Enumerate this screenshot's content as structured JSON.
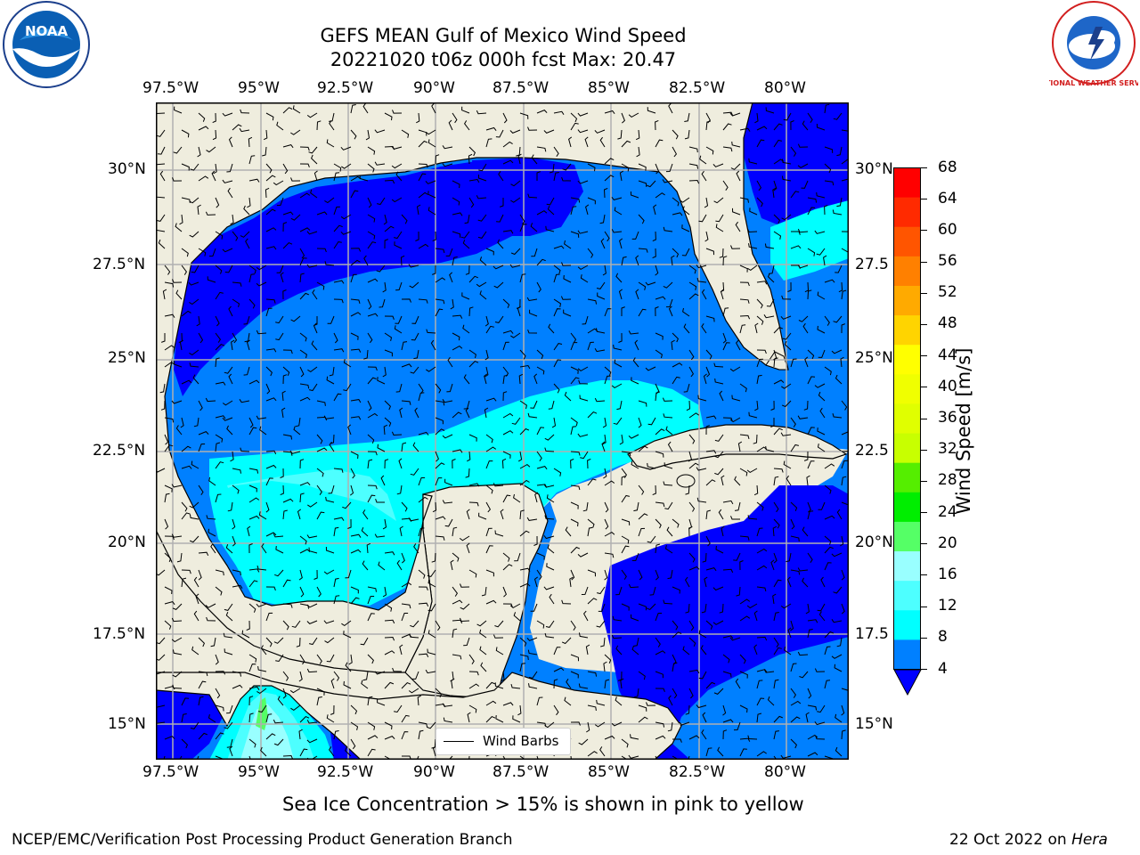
{
  "title": {
    "line1": "GEFS MEAN Gulf of Mexico Wind Speed",
    "line2": "20221020 t06z 000h fcst   Max: 20.47"
  },
  "logos": {
    "left": {
      "icon": "noaa-logo-icon",
      "text": "NOAA"
    },
    "right": {
      "icon": "national-weather-service-logo-icon",
      "text": "NATIONAL WEATHER SERVICE"
    }
  },
  "map": {
    "lon_ticks": [
      "97.5°W",
      "95°W",
      "92.5°W",
      "90°W",
      "87.5°W",
      "85°W",
      "82.5°W",
      "80°W"
    ],
    "lat_ticks_left": [
      "30°N",
      "27.5°N",
      "25°N",
      "22.5°N",
      "20°N",
      "17.5°N",
      "15°N"
    ],
    "lat_ticks_right": [
      "30°N",
      "27.5",
      "25°N",
      "22.5",
      "20°N",
      "17.5",
      "15°N"
    ],
    "legend_label": "Wind Barbs",
    "colors": {
      "land": "#efedde",
      "ws_4_8": "#0080ff",
      "ws_under4": "#0000ff",
      "ws_8_12": "#00ffff",
      "ws_12_16": "#4dffff",
      "ws_16_20": "#99ffff",
      "ws_20_24": "#55ff66"
    }
  },
  "colorbar": {
    "label": "Wind Speed [m/s]",
    "ticks": [
      "68",
      "64",
      "60",
      "56",
      "52",
      "48",
      "44",
      "40",
      "36",
      "32",
      "28",
      "24",
      "20",
      "16",
      "12",
      "8",
      "4"
    ],
    "colors_top_to_bottom": [
      "#ff0000",
      "#ff2a00",
      "#ff5500",
      "#ff8000",
      "#ffaa00",
      "#ffd400",
      "#ffff00",
      "#f0ff00",
      "#e0ff00",
      "#c8ff00",
      "#55ee00",
      "#00ee00",
      "#55ff66",
      "#99ffff",
      "#4dffff",
      "#00ffff",
      "#0080ff"
    ],
    "under_color": "#0000ff"
  },
  "note": "Sea Ice Concentration > 15% is shown in pink to yellow",
  "footer": {
    "left": "NCEP/EMC/Verification Post Processing Product Generation Branch",
    "date": "22 Oct 2022 on ",
    "machine": "Hera"
  }
}
